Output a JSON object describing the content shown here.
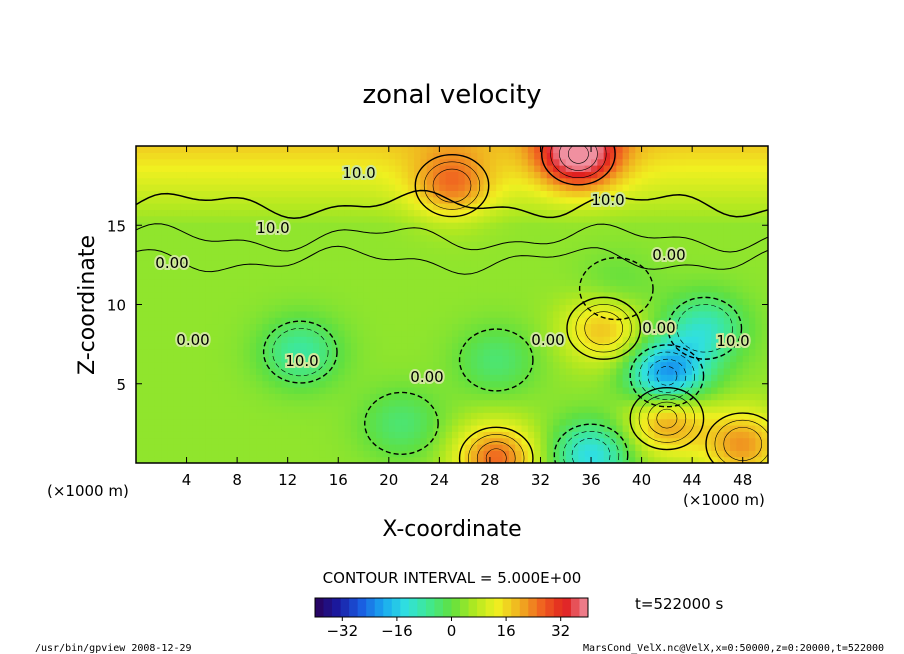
{
  "chart_data": {
    "type": "heatmap",
    "title": "zonal velocity",
    "xlabel": "X-coordinate",
    "ylabel": "Z-coordinate",
    "x_unit": "(×1000 m)",
    "y_unit": "(×1000 m)",
    "x_ticks": [
      "4",
      "8",
      "12",
      "16",
      "20",
      "24",
      "28",
      "32",
      "36",
      "40",
      "44",
      "48"
    ],
    "y_ticks": [
      "5",
      "10",
      "15"
    ],
    "xlim": [
      0,
      50
    ],
    "ylim": [
      0,
      20
    ],
    "contour_interval_text": "CONTOUR INTERVAL = 5.000E+00",
    "contour_labels": [
      "10.0",
      "10.0",
      "10.0",
      "0.00",
      "0.00",
      "0.00",
      "10.0",
      "0.00",
      "0.00",
      "0.00",
      "10.0"
    ],
    "colorbar": {
      "range": [
        -40,
        40
      ],
      "ticks": [
        "−32",
        "−16",
        "0",
        "16",
        "32"
      ],
      "colors": [
        "#2a0058",
        "#1a1aa0",
        "#1a5ae0",
        "#1aa8f0",
        "#30e0e0",
        "#40e890",
        "#60e040",
        "#b0e820",
        "#f0f020",
        "#f0b020",
        "#f06020",
        "#e02020",
        "#f090a0"
      ]
    },
    "time_label": "t=522000 s",
    "footer_left": "/usr/bin/gpview  2008-12-29",
    "footer_right": "MarsCond_VelX.nc@VelX,x=0:50000,z=0:20000,t=522000",
    "features": [
      {
        "x": 13,
        "z": 7,
        "u": -12
      },
      {
        "x": 28.5,
        "z": 6.5,
        "u": -8
      },
      {
        "x": 42,
        "z": 5.5,
        "u": -28
      },
      {
        "x": 45,
        "z": 8.5,
        "u": -14
      },
      {
        "x": 21,
        "z": 2.5,
        "u": -8
      },
      {
        "x": 36,
        "z": 0.5,
        "u": -18
      },
      {
        "x": 38,
        "z": 11,
        "u": -5
      },
      {
        "x": 42,
        "z": 2.8,
        "u": 20
      },
      {
        "x": 37,
        "z": 8.5,
        "u": 15
      },
      {
        "x": 28.5,
        "z": 0.3,
        "u": 22
      },
      {
        "x": 48,
        "z": 1.2,
        "u": 18
      },
      {
        "x": 35,
        "z": 19.5,
        "u": 30
      },
      {
        "x": 25,
        "z": 17.5,
        "u": 15
      }
    ]
  }
}
